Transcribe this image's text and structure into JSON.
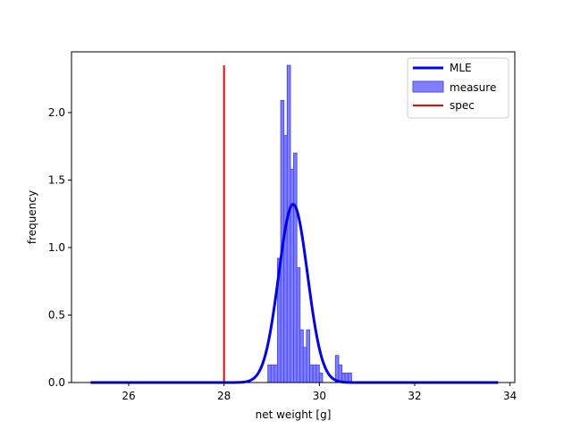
{
  "chart_data": {
    "type": "bar",
    "xlabel": "net weight [g]",
    "ylabel": "frequency",
    "xlim": [
      24.8,
      34.1
    ],
    "ylim": [
      0,
      2.45
    ],
    "xticks": [
      26,
      28,
      30,
      32,
      34
    ],
    "yticks": [
      0.0,
      0.5,
      1.0,
      1.5,
      2.0
    ],
    "xtick_labels": [
      "26",
      "28",
      "30",
      "32",
      "34"
    ],
    "ytick_labels": [
      "0.0",
      "0.5",
      "1.0",
      "1.5",
      "2.0"
    ],
    "legend_position": "top-right",
    "colors": {
      "mle": "#0000ff",
      "hist_fill": "#7f7fff",
      "hist_edge": "#4b4bff",
      "spec": "#ff0000"
    },
    "series": [
      {
        "name": "MLE",
        "kind": "line",
        "color": "#0000ff",
        "curve": "normal",
        "mean": 29.45,
        "std": 0.302,
        "x_range": [
          25.2,
          33.75
        ]
      },
      {
        "name": "measure",
        "kind": "histogram",
        "color": "#0000ff",
        "alpha": 0.5,
        "bin_width": 0.0675,
        "bins": [
          {
            "x0": 28.92,
            "value": 0.13
          },
          {
            "x0": 28.9875,
            "value": 0.13
          },
          {
            "x0": 29.055,
            "value": 0.13
          },
          {
            "x0": 29.1225,
            "value": 0.92
          },
          {
            "x0": 29.19,
            "value": 2.09
          },
          {
            "x0": 29.2575,
            "value": 1.83
          },
          {
            "x0": 29.325,
            "value": 2.35
          },
          {
            "x0": 29.3925,
            "value": 1.58
          },
          {
            "x0": 29.46,
            "value": 1.7
          },
          {
            "x0": 29.5275,
            "value": 0.85
          },
          {
            "x0": 29.595,
            "value": 0.39
          },
          {
            "x0": 29.6625,
            "value": 0.26
          },
          {
            "x0": 29.73,
            "value": 0.39
          },
          {
            "x0": 29.7975,
            "value": 0.13
          },
          {
            "x0": 29.865,
            "value": 0.13
          },
          {
            "x0": 29.9325,
            "value": 0.13
          },
          {
            "x0": 30.0,
            "value": 0.07
          },
          {
            "x0": 30.3375,
            "value": 0.2
          },
          {
            "x0": 30.405,
            "value": 0.13
          },
          {
            "x0": 30.4725,
            "value": 0.07
          },
          {
            "x0": 30.54,
            "value": 0.07
          },
          {
            "x0": 30.6075,
            "value": 0.07
          }
        ]
      },
      {
        "name": "spec",
        "kind": "vline",
        "color": "#ff0000",
        "x": 28.0,
        "y_range": [
          0,
          2.35
        ]
      }
    ]
  }
}
